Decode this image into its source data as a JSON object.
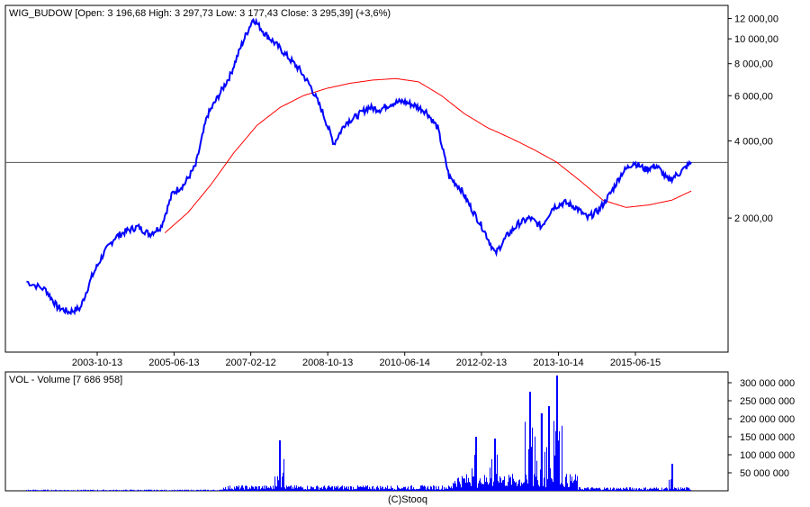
{
  "price_panel": {
    "title": "WIG_BUDOW [Open: 3 196,68  High: 3 297,73  Low: 3 177,43  Close: 3 295,39] (+3,6%)"
  },
  "volume_panel": {
    "title": "VOL - Volume [7 686 958]"
  },
  "footer": {
    "credit": "(C)Stooq"
  },
  "colors": {
    "price": "#0000ff",
    "moving_average": "#ff0000",
    "volume": "#0000ff",
    "last_price_line": "#555555",
    "frame": "#000000"
  },
  "chart_data": [
    {
      "type": "line",
      "scale": "log",
      "x_tick_labels": [
        "2003-10-13",
        "2005-06-13",
        "2007-02-12",
        "2008-10-13",
        "2010-06-14",
        "2012-02-13",
        "2013-10-14",
        "2015-06-15"
      ],
      "y_tick_labels": [
        "2 000,00",
        "4 000,00",
        "6 000,00",
        "8 000,00",
        "10 000,00",
        "12 000,00"
      ],
      "y_ticks": [
        2000,
        4000,
        6000,
        8000,
        10000,
        12000
      ],
      "ylim": [
        600,
        13500
      ],
      "last_price": 3295.39,
      "series": [
        {
          "role": "price",
          "x": [
            "2002-04",
            "2002-09",
            "2002-12",
            "2003-03",
            "2003-06",
            "2003-09",
            "2003-12",
            "2004-03",
            "2004-06",
            "2004-09",
            "2004-12",
            "2005-03",
            "2005-06",
            "2005-09",
            "2005-12",
            "2006-03",
            "2006-06",
            "2006-09",
            "2006-12",
            "2007-03",
            "2007-06",
            "2007-09",
            "2007-12",
            "2008-03",
            "2008-06",
            "2008-09",
            "2008-12",
            "2009-03",
            "2009-06",
            "2009-09",
            "2009-12",
            "2010-03",
            "2010-06",
            "2010-09",
            "2010-12",
            "2011-03",
            "2011-06",
            "2011-09",
            "2011-12",
            "2012-03",
            "2012-06",
            "2012-09",
            "2012-12",
            "2013-03",
            "2013-06",
            "2013-09",
            "2013-12",
            "2014-03",
            "2014-06",
            "2014-09",
            "2014-12",
            "2015-03",
            "2015-06",
            "2015-09",
            "2015-12",
            "2016-03",
            "2016-06",
            "2016-09"
          ],
          "values": [
            1130,
            1050,
            900,
            860,
            890,
            1180,
            1450,
            1680,
            1780,
            1850,
            1730,
            1850,
            2500,
            2700,
            3200,
            5000,
            6000,
            7200,
            9500,
            12000,
            10500,
            9500,
            8500,
            7600,
            6500,
            5200,
            3900,
            4700,
            5000,
            5400,
            5300,
            5600,
            5700,
            5500,
            5200,
            4500,
            2900,
            2600,
            2150,
            1800,
            1450,
            1700,
            1900,
            2000,
            1850,
            2200,
            2300,
            2200,
            2000,
            2150,
            2500,
            3000,
            3300,
            3100,
            3200,
            2800,
            3000,
            3300
          ]
        },
        {
          "role": "moving_average",
          "x": [
            "2005-04",
            "2005-10",
            "2006-04",
            "2006-10",
            "2007-04",
            "2007-10",
            "2008-04",
            "2008-10",
            "2009-04",
            "2009-10",
            "2010-04",
            "2010-10",
            "2011-04",
            "2011-10",
            "2012-04",
            "2012-10",
            "2013-04",
            "2013-10",
            "2014-04",
            "2014-10",
            "2015-04",
            "2015-10",
            "2016-04",
            "2016-09"
          ],
          "values": [
            1750,
            2100,
            2700,
            3600,
            4600,
            5400,
            6000,
            6400,
            6700,
            6900,
            7000,
            6800,
            6000,
            5100,
            4500,
            4100,
            3700,
            3300,
            2800,
            2350,
            2200,
            2250,
            2350,
            2550
          ]
        }
      ]
    },
    {
      "type": "bar",
      "scale": "linear",
      "y_tick_labels": [
        "50 000 000",
        "100 000 000",
        "150 000 000",
        "200 000 000",
        "250 000 000",
        "300 000 000"
      ],
      "y_ticks": [
        50000000,
        100000000,
        150000000,
        200000000,
        250000000,
        300000000
      ],
      "ylim": [
        0,
        330000000
      ],
      "series": [
        {
          "role": "volume",
          "spikes": [
            {
              "x": "2007-10",
              "value": 140000000
            },
            {
              "x": "2012-01",
              "value": 150000000
            },
            {
              "x": "2012-06",
              "value": 145000000
            },
            {
              "x": "2013-03",
              "value": 275000000
            },
            {
              "x": "2013-06",
              "value": 215000000
            },
            {
              "x": "2013-08",
              "value": 235000000
            },
            {
              "x": "2013-10",
              "value": 320000000
            },
            {
              "x": "2016-04",
              "value": 75000000
            }
          ]
        }
      ]
    }
  ]
}
